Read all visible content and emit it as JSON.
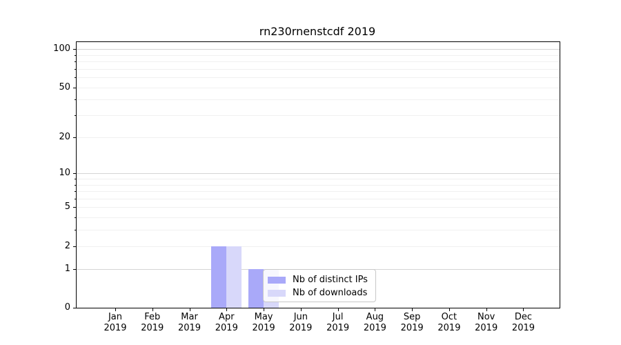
{
  "chart_data": {
    "type": "bar",
    "title": "rn230rnenstcdf 2019",
    "categories": [
      "Jan 2019",
      "Feb 2019",
      "Mar 2019",
      "Apr 2019",
      "May 2019",
      "Jun 2019",
      "Jul 2019",
      "Aug 2019",
      "Sep 2019",
      "Oct 2019",
      "Nov 2019",
      "Dec 2019"
    ],
    "series": [
      {
        "name": "Nb of distinct IPs",
        "color": "#a9a9f9",
        "values": [
          0,
          0,
          0,
          2,
          1,
          0,
          0,
          0,
          0,
          0,
          0,
          0
        ]
      },
      {
        "name": "Nb of downloads",
        "color": "#d8d8fa",
        "values": [
          0,
          0,
          0,
          2,
          1,
          0,
          0,
          0,
          0,
          0,
          0,
          0
        ]
      }
    ],
    "xlabel": "",
    "ylabel": "",
    "yscale": "log1p",
    "ytick_labels": [
      0,
      1,
      2,
      5,
      10,
      20,
      50,
      100
    ],
    "ymajor_gridlines": [
      1,
      10,
      100
    ],
    "yminor_gridlines": [
      2,
      3,
      4,
      5,
      6,
      7,
      8,
      9,
      20,
      30,
      40,
      50,
      60,
      70,
      80,
      90
    ],
    "ylim": [
      0,
      114
    ],
    "grid": true,
    "legend_position": "inside lower center"
  },
  "colors": {
    "background": "#ffffff",
    "spine": "#000000",
    "grid_major": "#d4d4d4",
    "grid_minor": "#f0f0f0",
    "text": "#000000",
    "legend_border": "#c8c8c8",
    "legend_bg": "rgba(255,255,255,0.8)"
  }
}
